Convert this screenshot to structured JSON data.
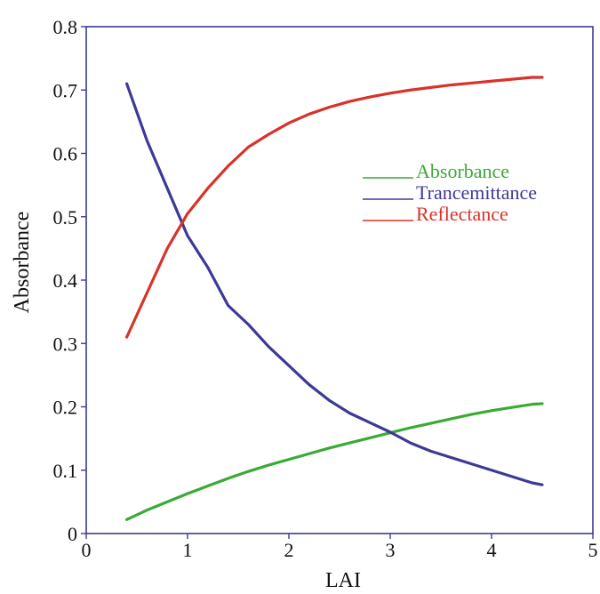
{
  "chart_data": {
    "type": "line",
    "title": "",
    "xlabel": "LAI",
    "ylabel": "Absorbance",
    "xlim": [
      0,
      5
    ],
    "ylim": [
      0,
      0.8
    ],
    "xticks": [
      "0",
      "1",
      "2",
      "3",
      "4",
      "5"
    ],
    "yticks": [
      "0",
      "0.1",
      "0.2",
      "0.3",
      "0.4",
      "0.5",
      "0.6",
      "0.7",
      "0.8"
    ],
    "grid": false,
    "legend_position": "upper-right",
    "x": [
      0.4,
      0.6,
      0.8,
      1.0,
      1.2,
      1.4,
      1.6,
      1.8,
      2.0,
      2.2,
      2.4,
      2.6,
      2.8,
      3.0,
      3.2,
      3.4,
      3.6,
      3.8,
      4.0,
      4.2,
      4.4,
      4.5
    ],
    "series": [
      {
        "name": "Absorbance",
        "color": "#3aaa35",
        "values": [
          0.022,
          0.037,
          0.05,
          0.063,
          0.075,
          0.087,
          0.098,
          0.108,
          0.117,
          0.126,
          0.135,
          0.143,
          0.151,
          0.159,
          0.167,
          0.174,
          0.181,
          0.188,
          0.194,
          0.199,
          0.204,
          0.205
        ]
      },
      {
        "name": "Trancemittance",
        "color": "#3d3a96",
        "values": [
          0.71,
          0.62,
          0.545,
          0.47,
          0.42,
          0.36,
          0.33,
          0.295,
          0.265,
          0.235,
          0.21,
          0.19,
          0.175,
          0.16,
          0.143,
          0.13,
          0.12,
          0.11,
          0.1,
          0.09,
          0.08,
          0.077
        ]
      },
      {
        "name": "Reflectance",
        "color": "#d8322a",
        "values": [
          0.31,
          0.38,
          0.45,
          0.505,
          0.545,
          0.58,
          0.61,
          0.63,
          0.648,
          0.662,
          0.673,
          0.682,
          0.689,
          0.695,
          0.7,
          0.704,
          0.708,
          0.711,
          0.714,
          0.717,
          0.72,
          0.72
        ]
      }
    ]
  },
  "colors": {
    "frame": "#3d3a96",
    "text": "#111111"
  }
}
